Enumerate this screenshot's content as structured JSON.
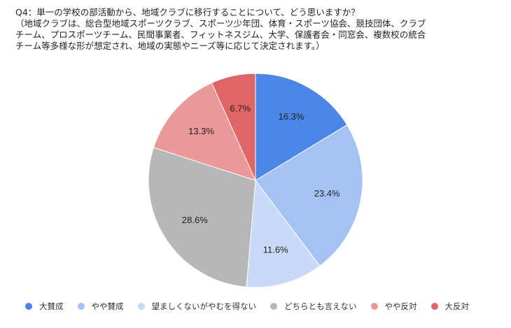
{
  "chart_data": {
    "type": "pie",
    "title_lines": [
      "Q4：単一の学校の部活動から、地域クラブに移行することについて、どう思いますか？",
      "（地域クラブは、総合型地域スポーツクラブ、スポーツ少年団、体育・スポーツ協会、競技団体、クラブ",
      "チーム、プロスポーツチーム、民間事業者、フィットネスジム、大学、保護者会・同窓会、複数校の統合",
      "チーム等多様な形が想定され、地域の実態やニーズ等に応じて決定されます。）"
    ],
    "slices": [
      {
        "name": "大賛成",
        "value": 16.3,
        "label": "16.3%",
        "color": "#4a86e8"
      },
      {
        "name": "やや賛成",
        "value": 23.4,
        "label": "23.4%",
        "color": "#a4c2f4"
      },
      {
        "name": "望ましくないがやむを得ない",
        "value": 11.6,
        "label": "11.6%",
        "color": "#c9daf8"
      },
      {
        "name": "どちらとも言えない",
        "value": 28.6,
        "label": "28.6%",
        "color": "#b7b7b7"
      },
      {
        "name": "やや反対",
        "value": 13.3,
        "label": "13.3%",
        "color": "#ea9999"
      },
      {
        "name": "大反対",
        "value": 6.7,
        "label": "6.7%",
        "color": "#e06666"
      }
    ],
    "start_angle_deg": 0,
    "direction": "clockwise",
    "legend_position": "bottom"
  }
}
